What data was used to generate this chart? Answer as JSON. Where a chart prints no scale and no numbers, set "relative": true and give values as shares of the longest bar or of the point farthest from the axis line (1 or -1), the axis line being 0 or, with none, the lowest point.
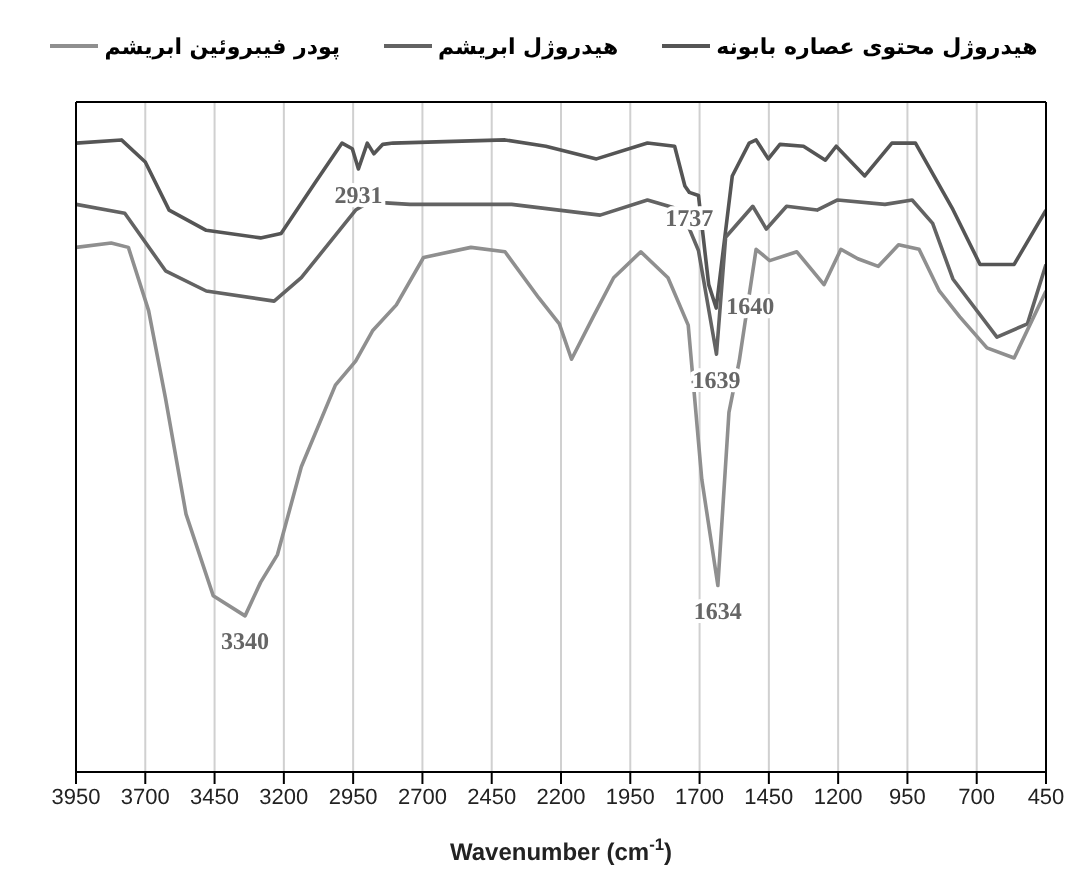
{
  "chart_data": {
    "type": "line",
    "relative": true,
    "xlabel": "Wavenumber (cm$^{-1}$)",
    "xlim": [
      3950,
      450
    ],
    "xticks": [
      3950,
      3700,
      3450,
      3200,
      2950,
      2700,
      2450,
      2200,
      1950,
      1700,
      1450,
      1200,
      950,
      700,
      450
    ],
    "grid": "x",
    "legend": "top",
    "marker": "none",
    "line_style": "solid",
    "series": [
      {
        "name": "هیدروژل محتوی عصاره بابونه",
        "color": "#555555",
        "x": [
          3950,
          3786,
          3700,
          3614,
          3480,
          3284,
          3210,
          3088,
          2990,
          2953,
          2931,
          2899,
          2875,
          2843,
          2806,
          2402,
          2255,
          2072,
          1888,
          1790,
          1753,
          1737,
          1704,
          1667,
          1640,
          1582,
          1521,
          1496,
          1452,
          1410,
          1325,
          1246,
          1207,
          1104,
          1006,
          921,
          786,
          688,
          565,
          450
        ],
        "values": [
          0.995,
          1.0,
          0.965,
          0.889,
          0.857,
          0.845,
          0.852,
          0.932,
          0.995,
          0.986,
          0.954,
          0.995,
          0.978,
          0.993,
          0.995,
          1.0,
          0.99,
          0.97,
          0.995,
          0.99,
          0.927,
          0.917,
          0.912,
          0.771,
          0.734,
          0.943,
          0.995,
          1.0,
          0.97,
          0.993,
          0.99,
          0.968,
          0.99,
          0.943,
          0.995,
          0.995,
          0.89,
          0.803,
          0.803,
          0.889
        ]
      },
      {
        "name": "هیدروژل ابریشم",
        "color": "#636363",
        "x": [
          3950,
          3774,
          3627,
          3480,
          3235,
          3137,
          2941,
          2892,
          2745,
          2378,
          2059,
          1888,
          1765,
          1704,
          1639,
          1606,
          1508,
          1459,
          1386,
          1276,
          1202,
          1031,
          933,
          859,
          786,
          627,
          517,
          450
        ],
        "values": [
          0.898,
          0.884,
          0.793,
          0.761,
          0.745,
          0.782,
          0.889,
          0.902,
          0.898,
          0.898,
          0.881,
          0.905,
          0.889,
          0.825,
          0.661,
          0.846,
          0.895,
          0.859,
          0.895,
          0.889,
          0.905,
          0.898,
          0.905,
          0.868,
          0.78,
          0.688,
          0.709,
          0.803
        ]
      },
      {
        "name": "پودر فیبروئین ابریشم",
        "color": "#8f8f8f",
        "x": [
          3950,
          3823,
          3761,
          3688,
          3627,
          3553,
          3455,
          3340,
          3284,
          3223,
          3137,
          3014,
          2941,
          2880,
          2794,
          2696,
          2525,
          2402,
          2280,
          2206,
          2162,
          2084,
          2010,
          1912,
          1814,
          1741,
          1692,
          1634,
          1594,
          1557,
          1496,
          1447,
          1349,
          1251,
          1190,
          1129,
          1055,
          982,
          908,
          835,
          761,
          663,
          565,
          450
        ],
        "values": [
          0.83,
          0.837,
          0.83,
          0.73,
          0.591,
          0.408,
          0.279,
          0.247,
          0.3,
          0.344,
          0.483,
          0.612,
          0.65,
          0.698,
          0.739,
          0.814,
          0.83,
          0.823,
          0.75,
          0.709,
          0.653,
          0.72,
          0.782,
          0.823,
          0.782,
          0.707,
          0.463,
          0.295,
          0.569,
          0.65,
          0.827,
          0.809,
          0.823,
          0.771,
          0.827,
          0.812,
          0.8,
          0.834,
          0.827,
          0.761,
          0.72,
          0.671,
          0.655,
          0.761
        ]
      }
    ],
    "annotations": [
      {
        "text": "3340",
        "x": 3340,
        "y": 0.247
      },
      {
        "text": "2931",
        "x": 2931,
        "y": 0.954
      },
      {
        "text": "1737",
        "x": 1737,
        "y": 0.917
      },
      {
        "text": "1640",
        "x": 1640,
        "y": 0.734
      },
      {
        "text": "1639",
        "x": 1639,
        "y": 0.661
      },
      {
        "text": "1634",
        "x": 1634,
        "y": 0.295
      }
    ]
  }
}
